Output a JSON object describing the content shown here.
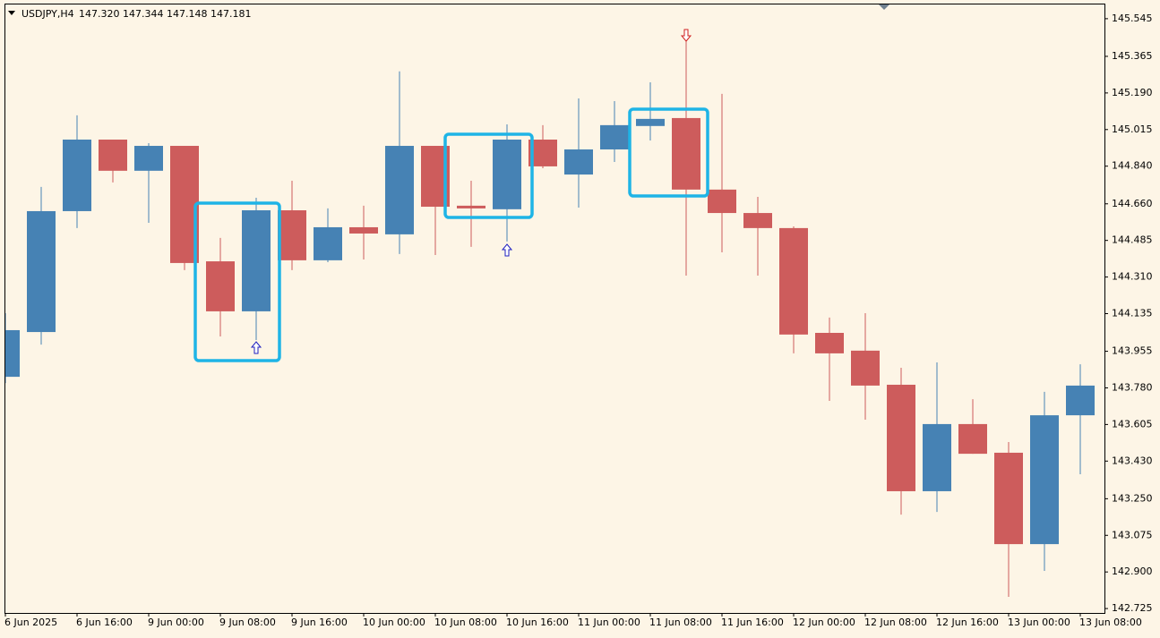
{
  "chart_data": {
    "type": "candlestick",
    "symbol": "USDJPY,H4",
    "quote": "147.320 147.344 147.148 147.181",
    "up_color": "#4682b4",
    "down_color": "#cd5c5c",
    "categories": [
      "6 Jun 2025",
      null,
      "6 Jun 16:00",
      null,
      "9 Jun 00:00",
      null,
      "9 Jun 08:00",
      null,
      "9 Jun 16:00",
      null,
      "10 Jun 00:00",
      null,
      "10 Jun 08:00",
      null,
      "10 Jun 16:00",
      null,
      "11 Jun 00:00",
      null,
      "11 Jun 08:00",
      null,
      "11 Jun 16:00",
      null,
      "12 Jun 00:00",
      null,
      "12 Jun 08:00",
      null,
      "12 Jun 16:00",
      null,
      "13 Jun 00:00",
      null,
      "13 Jun 08:00"
    ],
    "open": [
      143.833,
      144.047,
      144.625,
      144.967,
      144.818,
      144.937,
      144.385,
      144.146,
      144.629,
      144.39,
      144.548,
      144.514,
      144.937,
      144.651,
      144.634,
      144.967,
      144.8,
      144.92,
      145.032,
      145.07,
      144.728,
      144.616,
      144.544,
      144.043,
      143.958,
      143.795,
      143.286,
      143.607,
      143.47,
      143.033,
      143.649
    ],
    "high": [
      144.137,
      144.741,
      145.083,
      144.967,
      144.95,
      144.937,
      144.497,
      144.689,
      144.77,
      144.638,
      144.651,
      145.293,
      144.937,
      144.77,
      145.04,
      145.036,
      145.164,
      145.151,
      145.241,
      145.442,
      145.186,
      144.693,
      144.552,
      144.116,
      144.137,
      143.876,
      143.902,
      143.726,
      143.521,
      143.761,
      143.893
    ],
    "low": [
      143.803,
      143.987,
      144.544,
      144.762,
      144.569,
      144.343,
      144.026,
      144.009,
      144.343,
      144.381,
      144.394,
      144.42,
      144.415,
      144.454,
      144.48,
      144.83,
      144.642,
      144.86,
      144.963,
      144.317,
      144.428,
      144.317,
      143.945,
      143.718,
      143.628,
      143.174,
      143.187,
      143.465,
      142.781,
      142.905,
      143.367
    ],
    "close": [
      144.056,
      144.625,
      144.967,
      144.818,
      144.937,
      144.377,
      144.146,
      144.629,
      144.39,
      144.548,
      144.518,
      144.937,
      144.646,
      144.638,
      144.967,
      144.839,
      144.92,
      145.036,
      145.066,
      144.728,
      144.616,
      144.544,
      144.035,
      143.945,
      143.791,
      143.286,
      143.607,
      143.465,
      143.033,
      143.649,
      143.791
    ],
    "ylim": [
      142.704,
      145.613
    ],
    "yticks": [
      145.545,
      145.365,
      {
        "value": 145.19,
        "label": "145.190"
      },
      145.015,
      {
        "value": 144.84,
        "label": "144.840"
      },
      {
        "value": 144.66,
        "label": "144.660"
      },
      144.485,
      {
        "value": 144.31,
        "label": "144.310"
      },
      144.135,
      143.955,
      {
        "value": 143.78,
        "label": "143.780"
      },
      143.605,
      {
        "value": 143.43,
        "label": "143.430"
      },
      {
        "value": 143.25,
        "label": "143.250"
      },
      143.075,
      {
        "value": 142.9,
        "label": "142.900"
      },
      142.725
    ]
  }
}
